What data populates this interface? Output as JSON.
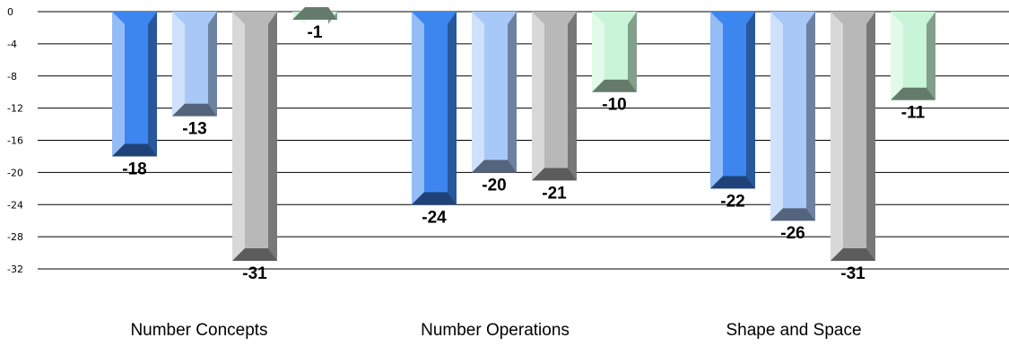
{
  "chart_data": {
    "type": "bar",
    "categories": [
      "Number Concepts",
      "Number Operations",
      "Shape and Space"
    ],
    "series": [
      {
        "values": [
          -18,
          -24,
          -22
        ],
        "color": "#3d86f0"
      },
      {
        "values": [
          -13,
          -20,
          -26
        ],
        "color": "#a8c8f8"
      },
      {
        "values": [
          -31,
          -21,
          -31
        ],
        "color": "#b8b8b8"
      },
      {
        "values": [
          -1,
          -10,
          -11
        ],
        "color": "#c8f5d8"
      }
    ],
    "ylim": [
      -32,
      0
    ],
    "yticks": [
      0,
      -4,
      -8,
      -12,
      -16,
      -20,
      -24,
      -28,
      -32
    ],
    "grid": true,
    "legend": "none"
  }
}
